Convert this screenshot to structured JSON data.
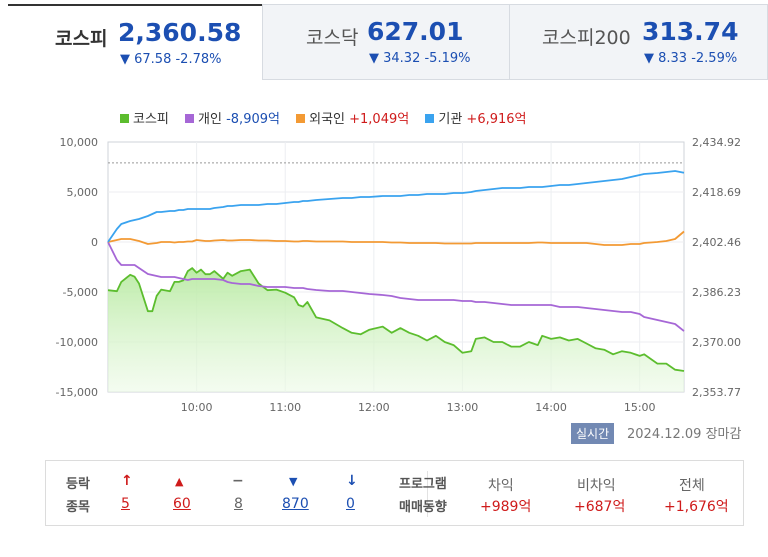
{
  "tabs": [
    {
      "name": "코스피",
      "value": "2,360.58",
      "change": "▼ 67.58 -2.78%",
      "active": true
    },
    {
      "name": "코스닥",
      "value": "627.01",
      "change": "▼ 34.32 -5.19%",
      "active": false
    },
    {
      "name": "코스피200",
      "value": "313.74",
      "change": "▼ 8.33 -2.59%",
      "active": false
    }
  ],
  "legend": [
    {
      "name": "코스피",
      "value": "",
      "color": "#5cbd2e"
    },
    {
      "name": "개인",
      "value": "-8,909억",
      "color": "#a667d6"
    },
    {
      "name": "외국인",
      "value": "+1,049억",
      "color": "#f39a34"
    },
    {
      "name": "기관",
      "value": "+6,916억",
      "color": "#3aa3ef"
    }
  ],
  "chart_data": {
    "type": "line",
    "x_ticks": [
      "10:00",
      "11:00",
      "12:00",
      "13:00",
      "14:00",
      "15:00"
    ],
    "y_left_ticks": [
      "10,000",
      "5,000",
      "0",
      "-5,000",
      "-10,000",
      "-15,000"
    ],
    "y_left_range": [
      -15000,
      10000
    ],
    "y_right_ticks": [
      "2,434.92",
      "2,418.69",
      "2,402.46",
      "2,386.23",
      "2,370.00",
      "2,353.77"
    ],
    "y_right_range": [
      2353.77,
      2434.92
    ],
    "reference_line": 2428.16,
    "x_hours": [
      9.0,
      9.1,
      9.15,
      9.25,
      9.3,
      9.35,
      9.45,
      9.5,
      9.55,
      9.6,
      9.7,
      9.75,
      9.8,
      9.85,
      9.9,
      9.95,
      10.0,
      10.05,
      10.1,
      10.15,
      10.2,
      10.3,
      10.35,
      10.4,
      10.5,
      10.6,
      10.7,
      10.8,
      10.9,
      11.0,
      11.1,
      11.15,
      11.2,
      11.25,
      11.35,
      11.5,
      11.65,
      11.75,
      11.85,
      11.95,
      12.1,
      12.2,
      12.3,
      12.4,
      12.5,
      12.6,
      12.7,
      12.8,
      12.9,
      13.0,
      13.1,
      13.15,
      13.25,
      13.35,
      13.45,
      13.55,
      13.65,
      13.75,
      13.85,
      13.9,
      14.0,
      14.1,
      14.2,
      14.3,
      14.4,
      14.5,
      14.6,
      14.7,
      14.8,
      14.9,
      15.0,
      15.05,
      15.2,
      15.3,
      15.4,
      15.5
    ],
    "series": [
      {
        "name": "코스피",
        "axis": "right",
        "values": [
          2386.8,
          2386.5,
          2389.5,
          2391.8,
          2391.2,
          2389.0,
          2380.0,
          2380.0,
          2385.0,
          2387.0,
          2386.5,
          2389.5,
          2389.5,
          2390.0,
          2393.0,
          2394.0,
          2392.5,
          2393.5,
          2392.0,
          2392.0,
          2393.0,
          2390.5,
          2392.5,
          2391.5,
          2393.0,
          2393.5,
          2389.0,
          2386.8,
          2387.0,
          2386.0,
          2384.5,
          2382.0,
          2381.5,
          2383.0,
          2378.0,
          2377.0,
          2374.5,
          2373.0,
          2372.5,
          2374.0,
          2375.0,
          2373.0,
          2374.5,
          2373.0,
          2372.0,
          2370.5,
          2372.0,
          2370.0,
          2369.0,
          2366.5,
          2367.0,
          2371.0,
          2371.5,
          2370.0,
          2370.0,
          2368.5,
          2368.5,
          2370.0,
          2369.0,
          2372.0,
          2371.0,
          2371.5,
          2370.5,
          2371.0,
          2369.5,
          2368.0,
          2367.5,
          2366.0,
          2367.0,
          2366.5,
          2365.5,
          2366.0,
          2363.0,
          2363.0,
          2361.0,
          2360.58
        ]
      },
      {
        "name": "개인",
        "axis": "left",
        "values": [
          0,
          -1800,
          -2300,
          -2300,
          -2300,
          -2600,
          -3200,
          -3300,
          -3400,
          -3500,
          -3500,
          -3500,
          -3600,
          -3700,
          -3800,
          -3700,
          -3700,
          -3700,
          -3700,
          -3700,
          -3700,
          -3800,
          -4000,
          -4100,
          -4200,
          -4200,
          -4400,
          -4500,
          -4500,
          -4500,
          -4600,
          -4600,
          -4600,
          -4700,
          -4800,
          -4900,
          -4900,
          -5000,
          -5100,
          -5200,
          -5300,
          -5400,
          -5600,
          -5700,
          -5800,
          -5800,
          -5800,
          -5800,
          -5800,
          -5900,
          -5900,
          -6000,
          -6000,
          -6100,
          -6200,
          -6300,
          -6300,
          -6300,
          -6300,
          -6300,
          -6300,
          -6500,
          -6500,
          -6500,
          -6600,
          -6700,
          -6800,
          -6900,
          -7000,
          -7000,
          -7200,
          -7500,
          -7800,
          -8000,
          -8200,
          -8909
        ]
      },
      {
        "name": "외국인",
        "axis": "left",
        "values": [
          0,
          200,
          300,
          300,
          200,
          100,
          -200,
          -150,
          -100,
          0,
          0,
          -50,
          0,
          0,
          50,
          50,
          200,
          150,
          100,
          100,
          150,
          200,
          150,
          150,
          200,
          200,
          150,
          150,
          100,
          100,
          50,
          50,
          100,
          100,
          50,
          50,
          50,
          0,
          0,
          0,
          0,
          -50,
          -50,
          -100,
          -100,
          -100,
          -100,
          -150,
          -150,
          -150,
          -150,
          -100,
          -100,
          -100,
          -100,
          -100,
          -100,
          -100,
          -50,
          -50,
          -100,
          -100,
          -100,
          -100,
          -100,
          -200,
          -300,
          -300,
          -300,
          -200,
          -200,
          -100,
          0,
          100,
          300,
          1049
        ]
      },
      {
        "name": "기관",
        "axis": "left",
        "values": [
          0,
          1300,
          1800,
          2100,
          2200,
          2300,
          2600,
          2800,
          3000,
          3000,
          3100,
          3100,
          3200,
          3200,
          3300,
          3300,
          3300,
          3300,
          3300,
          3300,
          3400,
          3500,
          3600,
          3600,
          3700,
          3700,
          3700,
          3800,
          3800,
          3900,
          4000,
          4000,
          4100,
          4100,
          4200,
          4300,
          4400,
          4400,
          4500,
          4500,
          4600,
          4600,
          4600,
          4700,
          4700,
          4800,
          4800,
          4800,
          4900,
          4900,
          5000,
          5100,
          5200,
          5300,
          5400,
          5400,
          5400,
          5500,
          5500,
          5500,
          5600,
          5700,
          5700,
          5800,
          5900,
          6000,
          6100,
          6200,
          6300,
          6500,
          6700,
          6800,
          6900,
          7000,
          7100,
          6916
        ]
      }
    ]
  },
  "status": {
    "badge": "실시간",
    "date": "2024.12.09",
    "state": "장마감"
  },
  "breadth": {
    "label1": "등락",
    "label2": "종목",
    "items": [
      {
        "symbol": "↑",
        "count": "5",
        "tone": "red"
      },
      {
        "symbol": "▲",
        "count": "60",
        "tone": "red"
      },
      {
        "symbol": "−",
        "count": "8",
        "tone": "gray"
      },
      {
        "symbol": "▼",
        "count": "870",
        "tone": "blue"
      },
      {
        "symbol": "↓",
        "count": "0",
        "tone": "blue"
      }
    ]
  },
  "program": {
    "label1": "프로그램",
    "label2": "매매동향",
    "cols": [
      {
        "head": "차익",
        "value": "+989억"
      },
      {
        "head": "비차익",
        "value": "+687억"
      },
      {
        "head": "전체",
        "value": "+1,676억"
      }
    ]
  }
}
